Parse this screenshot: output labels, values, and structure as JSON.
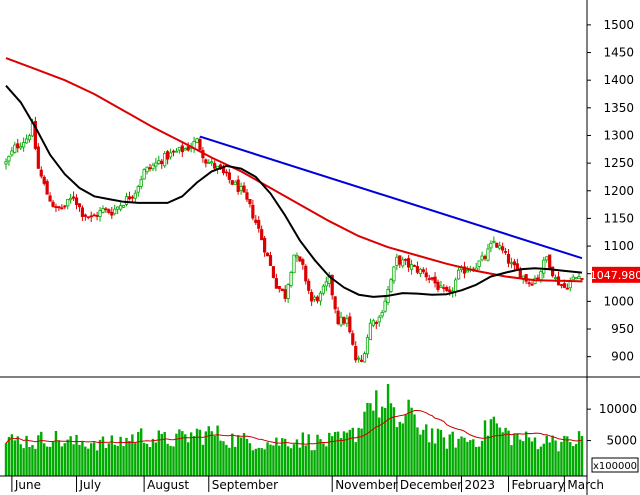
{
  "chart_data": {
    "type": "candlestick",
    "title": "",
    "price_axis": {
      "ticks": [
        900,
        950,
        1000,
        1050,
        1100,
        1150,
        1200,
        1250,
        1300,
        1350,
        1400,
        1450,
        1500
      ],
      "range": [
        865,
        1545
      ]
    },
    "last_price_label": "1047.980",
    "volume_axis": {
      "ticks": [
        5000,
        10000
      ],
      "range": [
        0,
        14000
      ],
      "multiplier_label": "x100000"
    },
    "months": [
      {
        "label": "June",
        "day": 2
      },
      {
        "label": "July",
        "day": 24
      },
      {
        "label": "August",
        "day": 47
      },
      {
        "label": "September",
        "day": 69
      },
      {
        "label": "November",
        "day": 111
      },
      {
        "label": "December",
        "day": 133
      },
      {
        "label": "2023",
        "day": 155
      },
      {
        "label": "February",
        "day": 171
      },
      {
        "label": "March",
        "day": 190
      }
    ],
    "close_anchors": [
      [
        0,
        1250
      ],
      [
        3,
        1278
      ],
      [
        7,
        1295
      ],
      [
        9,
        1315
      ],
      [
        11,
        1240
      ],
      [
        14,
        1195
      ],
      [
        17,
        1165
      ],
      [
        20,
        1172
      ],
      [
        23,
        1190
      ],
      [
        26,
        1160
      ],
      [
        29,
        1150
      ],
      [
        33,
        1165
      ],
      [
        36,
        1162
      ],
      [
        40,
        1180
      ],
      [
        44,
        1200
      ],
      [
        47,
        1235
      ],
      [
        50,
        1245
      ],
      [
        54,
        1260
      ],
      [
        58,
        1270
      ],
      [
        62,
        1278
      ],
      [
        65,
        1290
      ],
      [
        68,
        1255
      ],
      [
        72,
        1240
      ],
      [
        76,
        1220
      ],
      [
        80,
        1200
      ],
      [
        83,
        1170
      ],
      [
        86,
        1130
      ],
      [
        89,
        1080
      ],
      [
        92,
        1030
      ],
      [
        95,
        1010
      ],
      [
        98,
        1085
      ],
      [
        101,
        1060
      ],
      [
        104,
        1000
      ],
      [
        107,
        1010
      ],
      [
        110,
        1040
      ],
      [
        113,
        965
      ],
      [
        116,
        965
      ],
      [
        119,
        895
      ],
      [
        121,
        890
      ],
      [
        124,
        960
      ],
      [
        127,
        970
      ],
      [
        130,
        1020
      ],
      [
        133,
        1075
      ],
      [
        136,
        1068
      ],
      [
        139,
        1060
      ],
      [
        142,
        1052
      ],
      [
        145,
        1040
      ],
      [
        148,
        1020
      ],
      [
        151,
        1010
      ],
      [
        154,
        1050
      ],
      [
        157,
        1060
      ],
      [
        160,
        1065
      ],
      [
        163,
        1080
      ],
      [
        166,
        1108
      ],
      [
        169,
        1090
      ],
      [
        172,
        1065
      ],
      [
        175,
        1050
      ],
      [
        178,
        1035
      ],
      [
        181,
        1045
      ],
      [
        184,
        1080
      ],
      [
        187,
        1040
      ],
      [
        190,
        1025
      ],
      [
        193,
        1040
      ],
      [
        196,
        1048
      ]
    ],
    "volume_anchors": [
      [
        0,
        4800
      ],
      [
        5,
        5200
      ],
      [
        10,
        4800
      ],
      [
        15,
        5600
      ],
      [
        20,
        4800
      ],
      [
        25,
        4600
      ],
      [
        30,
        4800
      ],
      [
        35,
        4400
      ],
      [
        40,
        5000
      ],
      [
        45,
        5800
      ],
      [
        50,
        5400
      ],
      [
        55,
        5000
      ],
      [
        60,
        5400
      ],
      [
        65,
        6000
      ],
      [
        70,
        6200
      ],
      [
        75,
        5400
      ],
      [
        80,
        5000
      ],
      [
        85,
        4800
      ],
      [
        90,
        4600
      ],
      [
        95,
        5000
      ],
      [
        100,
        5200
      ],
      [
        105,
        4800
      ],
      [
        110,
        4800
      ],
      [
        115,
        5200
      ],
      [
        118,
        6000
      ],
      [
        120,
        7000
      ],
      [
        122,
        9000
      ],
      [
        124,
        10500
      ],
      [
        126,
        12000
      ],
      [
        128,
        10000
      ],
      [
        130,
        9000
      ],
      [
        133,
        8000
      ],
      [
        136,
        8500
      ],
      [
        140,
        7500
      ],
      [
        143,
        7000
      ],
      [
        146,
        5500
      ],
      [
        150,
        5000
      ],
      [
        155,
        5200
      ],
      [
        160,
        5200
      ],
      [
        163,
        6400
      ],
      [
        165,
        7800
      ],
      [
        168,
        6600
      ],
      [
        172,
        5800
      ],
      [
        176,
        5200
      ],
      [
        180,
        5000
      ],
      [
        185,
        4800
      ],
      [
        190,
        4600
      ],
      [
        196,
        5200
      ]
    ],
    "volume_spikes": [
      [
        123,
        11000
      ],
      [
        126,
        13000
      ],
      [
        130,
        14000
      ],
      [
        137,
        11500
      ],
      [
        166,
        8800
      ],
      [
        186,
        5800
      ],
      [
        195,
        6500
      ]
    ],
    "ma_long": [
      [
        0,
        1440
      ],
      [
        10,
        1420
      ],
      [
        20,
        1400
      ],
      [
        30,
        1375
      ],
      [
        40,
        1345
      ],
      [
        50,
        1315
      ],
      [
        60,
        1288
      ],
      [
        70,
        1260
      ],
      [
        80,
        1235
      ],
      [
        90,
        1205
      ],
      [
        100,
        1175
      ],
      [
        110,
        1145
      ],
      [
        120,
        1118
      ],
      [
        130,
        1098
      ],
      [
        140,
        1083
      ],
      [
        150,
        1068
      ],
      [
        160,
        1055
      ],
      [
        170,
        1045
      ],
      [
        180,
        1038
      ],
      [
        190,
        1037
      ],
      [
        196,
        1036
      ]
    ],
    "ma_short": [
      [
        0,
        1390
      ],
      [
        5,
        1360
      ],
      [
        10,
        1315
      ],
      [
        15,
        1265
      ],
      [
        20,
        1230
      ],
      [
        25,
        1205
      ],
      [
        30,
        1190
      ],
      [
        35,
        1185
      ],
      [
        40,
        1180
      ],
      [
        45,
        1178
      ],
      [
        50,
        1178
      ],
      [
        55,
        1178
      ],
      [
        60,
        1190
      ],
      [
        65,
        1215
      ],
      [
        70,
        1235
      ],
      [
        75,
        1245
      ],
      [
        80,
        1240
      ],
      [
        85,
        1225
      ],
      [
        90,
        1195
      ],
      [
        95,
        1155
      ],
      [
        100,
        1110
      ],
      [
        105,
        1075
      ],
      [
        110,
        1045
      ],
      [
        115,
        1025
      ],
      [
        120,
        1012
      ],
      [
        125,
        1008
      ],
      [
        130,
        1010
      ],
      [
        135,
        1015
      ],
      [
        140,
        1014
      ],
      [
        145,
        1012
      ],
      [
        150,
        1013
      ],
      [
        155,
        1020
      ],
      [
        160,
        1030
      ],
      [
        165,
        1045
      ],
      [
        170,
        1052
      ],
      [
        175,
        1058
      ],
      [
        180,
        1060
      ],
      [
        185,
        1058
      ],
      [
        190,
        1055
      ],
      [
        196,
        1052
      ]
    ],
    "trendline": [
      [
        66,
        1298
      ],
      [
        196,
        1078
      ]
    ],
    "volume_ma_note": "",
    "colors": {
      "up": "#00aa00",
      "down": "#dd0000",
      "volume": "#00aa00",
      "ma_long": "#dd0000",
      "ma_short": "#000000",
      "trendline": "#0000dd",
      "last_price_bg": "#ee0000",
      "last_price_text": "#ffffff",
      "volume_ma": "#cc0000"
    }
  }
}
